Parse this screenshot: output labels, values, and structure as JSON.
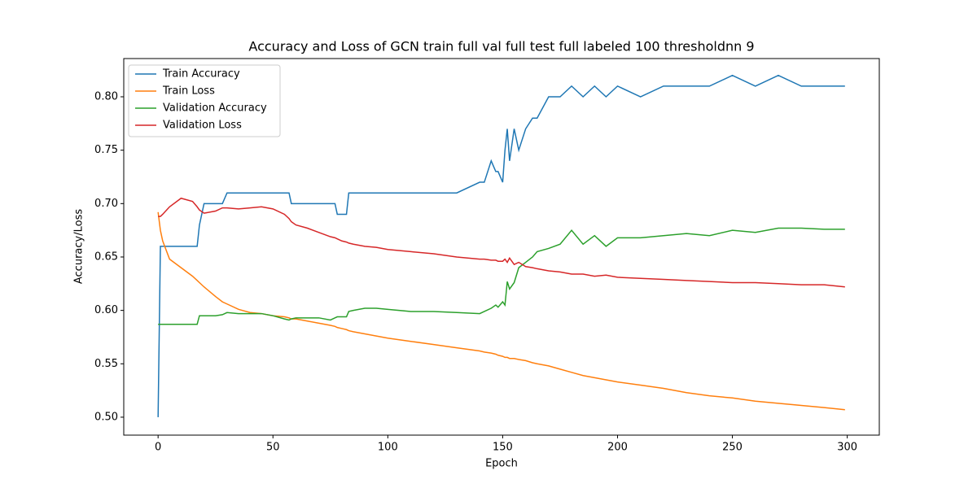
{
  "chart_data": {
    "type": "line",
    "title": "Accuracy and Loss of GCN train full val full test full labeled 100 thresholdnn 9",
    "xlabel": "Epoch",
    "ylabel": "Accuracy/Loss",
    "x": [
      0,
      1,
      2,
      5,
      10,
      15,
      17,
      18,
      20,
      25,
      28,
      30,
      35,
      40,
      45,
      50,
      55,
      57,
      58,
      60,
      65,
      70,
      75,
      77,
      78,
      80,
      82,
      83,
      85,
      90,
      95,
      100,
      110,
      120,
      130,
      140,
      142,
      145,
      147,
      148,
      150,
      151,
      152,
      153,
      155,
      157,
      160,
      163,
      165,
      170,
      175,
      180,
      185,
      190,
      195,
      200,
      210,
      220,
      230,
      240,
      250,
      260,
      270,
      280,
      290,
      299
    ],
    "series": [
      {
        "name": "Train Accuracy",
        "color": "#1f77b4",
        "values": [
          0.5,
          0.66,
          0.66,
          0.66,
          0.66,
          0.66,
          0.66,
          0.68,
          0.7,
          0.7,
          0.7,
          0.71,
          0.71,
          0.71,
          0.71,
          0.71,
          0.71,
          0.71,
          0.7,
          0.7,
          0.7,
          0.7,
          0.7,
          0.7,
          0.69,
          0.69,
          0.69,
          0.71,
          0.71,
          0.71,
          0.71,
          0.71,
          0.71,
          0.71,
          0.71,
          0.72,
          0.72,
          0.74,
          0.73,
          0.73,
          0.72,
          0.75,
          0.77,
          0.74,
          0.77,
          0.75,
          0.77,
          0.78,
          0.78,
          0.8,
          0.8,
          0.81,
          0.8,
          0.81,
          0.8,
          0.81,
          0.8,
          0.81,
          0.81,
          0.81,
          0.82,
          0.81,
          0.82,
          0.81,
          0.81,
          0.81
        ]
      },
      {
        "name": "Train Loss",
        "color": "#ff7f0e",
        "values": [
          0.692,
          0.675,
          0.665,
          0.648,
          0.64,
          0.632,
          0.628,
          0.626,
          0.622,
          0.613,
          0.608,
          0.606,
          0.601,
          0.598,
          0.597,
          0.595,
          0.594,
          0.593,
          0.592,
          0.592,
          0.59,
          0.588,
          0.586,
          0.585,
          0.584,
          0.583,
          0.582,
          0.581,
          0.58,
          0.578,
          0.576,
          0.574,
          0.571,
          0.568,
          0.565,
          0.562,
          0.561,
          0.56,
          0.559,
          0.558,
          0.557,
          0.556,
          0.556,
          0.555,
          0.555,
          0.554,
          0.553,
          0.551,
          0.55,
          0.548,
          0.545,
          0.542,
          0.539,
          0.537,
          0.535,
          0.533,
          0.53,
          0.527,
          0.523,
          0.52,
          0.518,
          0.515,
          0.513,
          0.511,
          0.509,
          0.507
        ]
      },
      {
        "name": "Validation Accuracy",
        "color": "#2ca02c",
        "values": [
          0.587,
          0.587,
          0.587,
          0.587,
          0.587,
          0.587,
          0.587,
          0.595,
          0.595,
          0.595,
          0.596,
          0.598,
          0.597,
          0.597,
          0.597,
          0.595,
          0.592,
          0.591,
          0.592,
          0.593,
          0.593,
          0.593,
          0.591,
          0.593,
          0.594,
          0.594,
          0.594,
          0.599,
          0.6,
          0.602,
          0.602,
          0.601,
          0.599,
          0.599,
          0.598,
          0.597,
          0.599,
          0.602,
          0.605,
          0.603,
          0.608,
          0.605,
          0.627,
          0.62,
          0.626,
          0.64,
          0.645,
          0.65,
          0.655,
          0.658,
          0.662,
          0.675,
          0.662,
          0.67,
          0.66,
          0.668,
          0.668,
          0.67,
          0.672,
          0.67,
          0.675,
          0.673,
          0.677,
          0.677,
          0.676,
          0.676
        ]
      },
      {
        "name": "Validation Loss",
        "color": "#d62728",
        "values": [
          0.688,
          0.688,
          0.69,
          0.697,
          0.705,
          0.702,
          0.697,
          0.694,
          0.691,
          0.693,
          0.696,
          0.696,
          0.695,
          0.696,
          0.697,
          0.695,
          0.69,
          0.686,
          0.683,
          0.68,
          0.677,
          0.673,
          0.669,
          0.668,
          0.667,
          0.665,
          0.664,
          0.663,
          0.662,
          0.66,
          0.659,
          0.657,
          0.655,
          0.653,
          0.65,
          0.648,
          0.648,
          0.647,
          0.647,
          0.646,
          0.646,
          0.648,
          0.645,
          0.649,
          0.643,
          0.645,
          0.641,
          0.64,
          0.639,
          0.637,
          0.636,
          0.634,
          0.634,
          0.632,
          0.633,
          0.631,
          0.63,
          0.629,
          0.628,
          0.627,
          0.626,
          0.626,
          0.625,
          0.624,
          0.624,
          0.622
        ]
      }
    ],
    "xlim": [
      -14.95,
      313.95
    ],
    "xticks": [
      0,
      50,
      100,
      150,
      200,
      250,
      300
    ],
    "ylim": [
      0.4832,
      0.8358
    ],
    "yticks": [
      {
        "value": 0.5,
        "label": "0.50"
      },
      {
        "value": 0.55,
        "label": "0.55"
      },
      {
        "value": 0.6,
        "label": "0.60"
      },
      {
        "value": 0.65,
        "label": "0.65"
      },
      {
        "value": 0.7,
        "label": "0.70"
      },
      {
        "value": 0.75,
        "label": "0.75"
      },
      {
        "value": 0.8,
        "label": "0.80"
      }
    ],
    "legend": "upper left"
  }
}
